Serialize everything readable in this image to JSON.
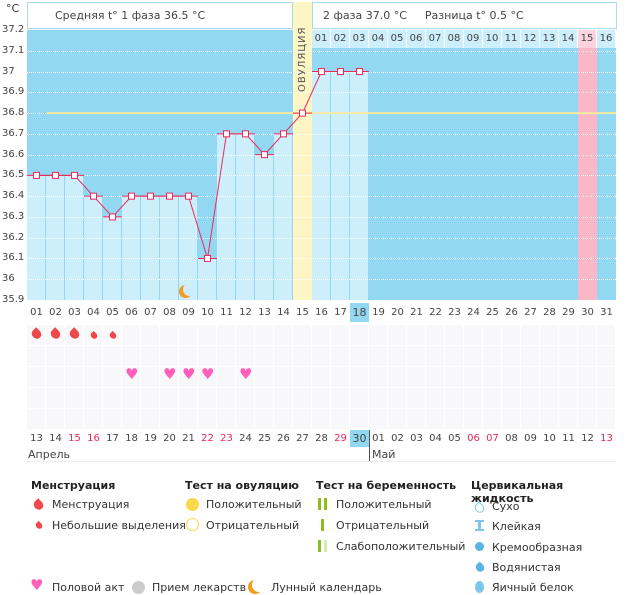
{
  "y_unit": "°C",
  "header": {
    "phase1": "Средняя t° 1 фаза 36.5 °C",
    "phase2": "2 фаза 37.0 °C",
    "diff": "Разница t° 0.5 °C",
    "ovulation_label": "ОВУЛЯЦИЯ"
  },
  "chart_data": {
    "type": "line",
    "ylim": [
      35.9,
      37.2
    ],
    "y_ticks": [
      "37.2",
      "37.1",
      "37",
      "36.9",
      "36.8",
      "36.7",
      "36.6",
      "36.5",
      "36.4",
      "36.3",
      "36.2",
      "36.1",
      "36",
      "35.9"
    ],
    "days": [
      "01",
      "02",
      "03",
      "04",
      "05",
      "06",
      "07",
      "08",
      "09",
      "10",
      "11",
      "12",
      "13",
      "14",
      "15",
      "16",
      "17",
      "18",
      "19",
      "20",
      "21",
      "22",
      "23",
      "24",
      "25",
      "26",
      "27",
      "28",
      "29",
      "30",
      "31"
    ],
    "temperatures": [
      36.5,
      36.5,
      36.5,
      36.4,
      36.3,
      36.4,
      36.4,
      36.4,
      36.4,
      36.1,
      36.7,
      36.7,
      36.6,
      36.7,
      36.8,
      37.0,
      37.0,
      37.0
    ],
    "coverline": 36.8,
    "ovulation_day": 15,
    "current_day": 18,
    "expected_period_day": 30,
    "phase2_days": [
      "01",
      "02",
      "03",
      "04",
      "05",
      "06",
      "07",
      "08",
      "09",
      "10",
      "11",
      "12",
      "13",
      "14",
      "15",
      "16"
    ],
    "line_color": "#f0285a"
  },
  "symbols": {
    "menstruation_heavy_days": [
      1,
      2,
      3
    ],
    "menstruation_light_days": [
      4,
      5
    ],
    "intercourse_days": [
      6,
      8,
      9,
      10,
      12
    ],
    "moon_day": 9
  },
  "calendar": {
    "dates": [
      "13",
      "14",
      "15",
      "16",
      "17",
      "18",
      "19",
      "20",
      "21",
      "22",
      "23",
      "24",
      "25",
      "26",
      "27",
      "28",
      "29",
      "30",
      "01",
      "02",
      "03",
      "04",
      "05",
      "06",
      "07",
      "08",
      "09",
      "10",
      "11",
      "12",
      "13"
    ],
    "weekend_idx": [
      2,
      3,
      9,
      10,
      16,
      23,
      24,
      30
    ],
    "months": [
      {
        "name": "Апрель",
        "start": 1
      },
      {
        "name": "Май",
        "start": 19
      }
    ]
  },
  "legend": {
    "menstruation": {
      "title": "Менструация",
      "items": [
        "Менструация",
        "Небольшие выделения"
      ]
    },
    "ovulation_test": {
      "title": "Тест на овуляцию",
      "items": [
        "Положительный",
        "Отрицательный"
      ]
    },
    "pregnancy_test": {
      "title": "Тест на беременность",
      "items": [
        "Положительный",
        "Отрицательный",
        "Слабоположительный"
      ]
    },
    "cervical": {
      "title": "Цервикальная жидкость",
      "items": [
        "Сухо",
        "Клейкая",
        "Кремообразная",
        "Водянистая",
        "Яичный белок"
      ]
    },
    "other": [
      "Половой акт",
      "Прием лекарств",
      "Лунный календарь"
    ]
  }
}
